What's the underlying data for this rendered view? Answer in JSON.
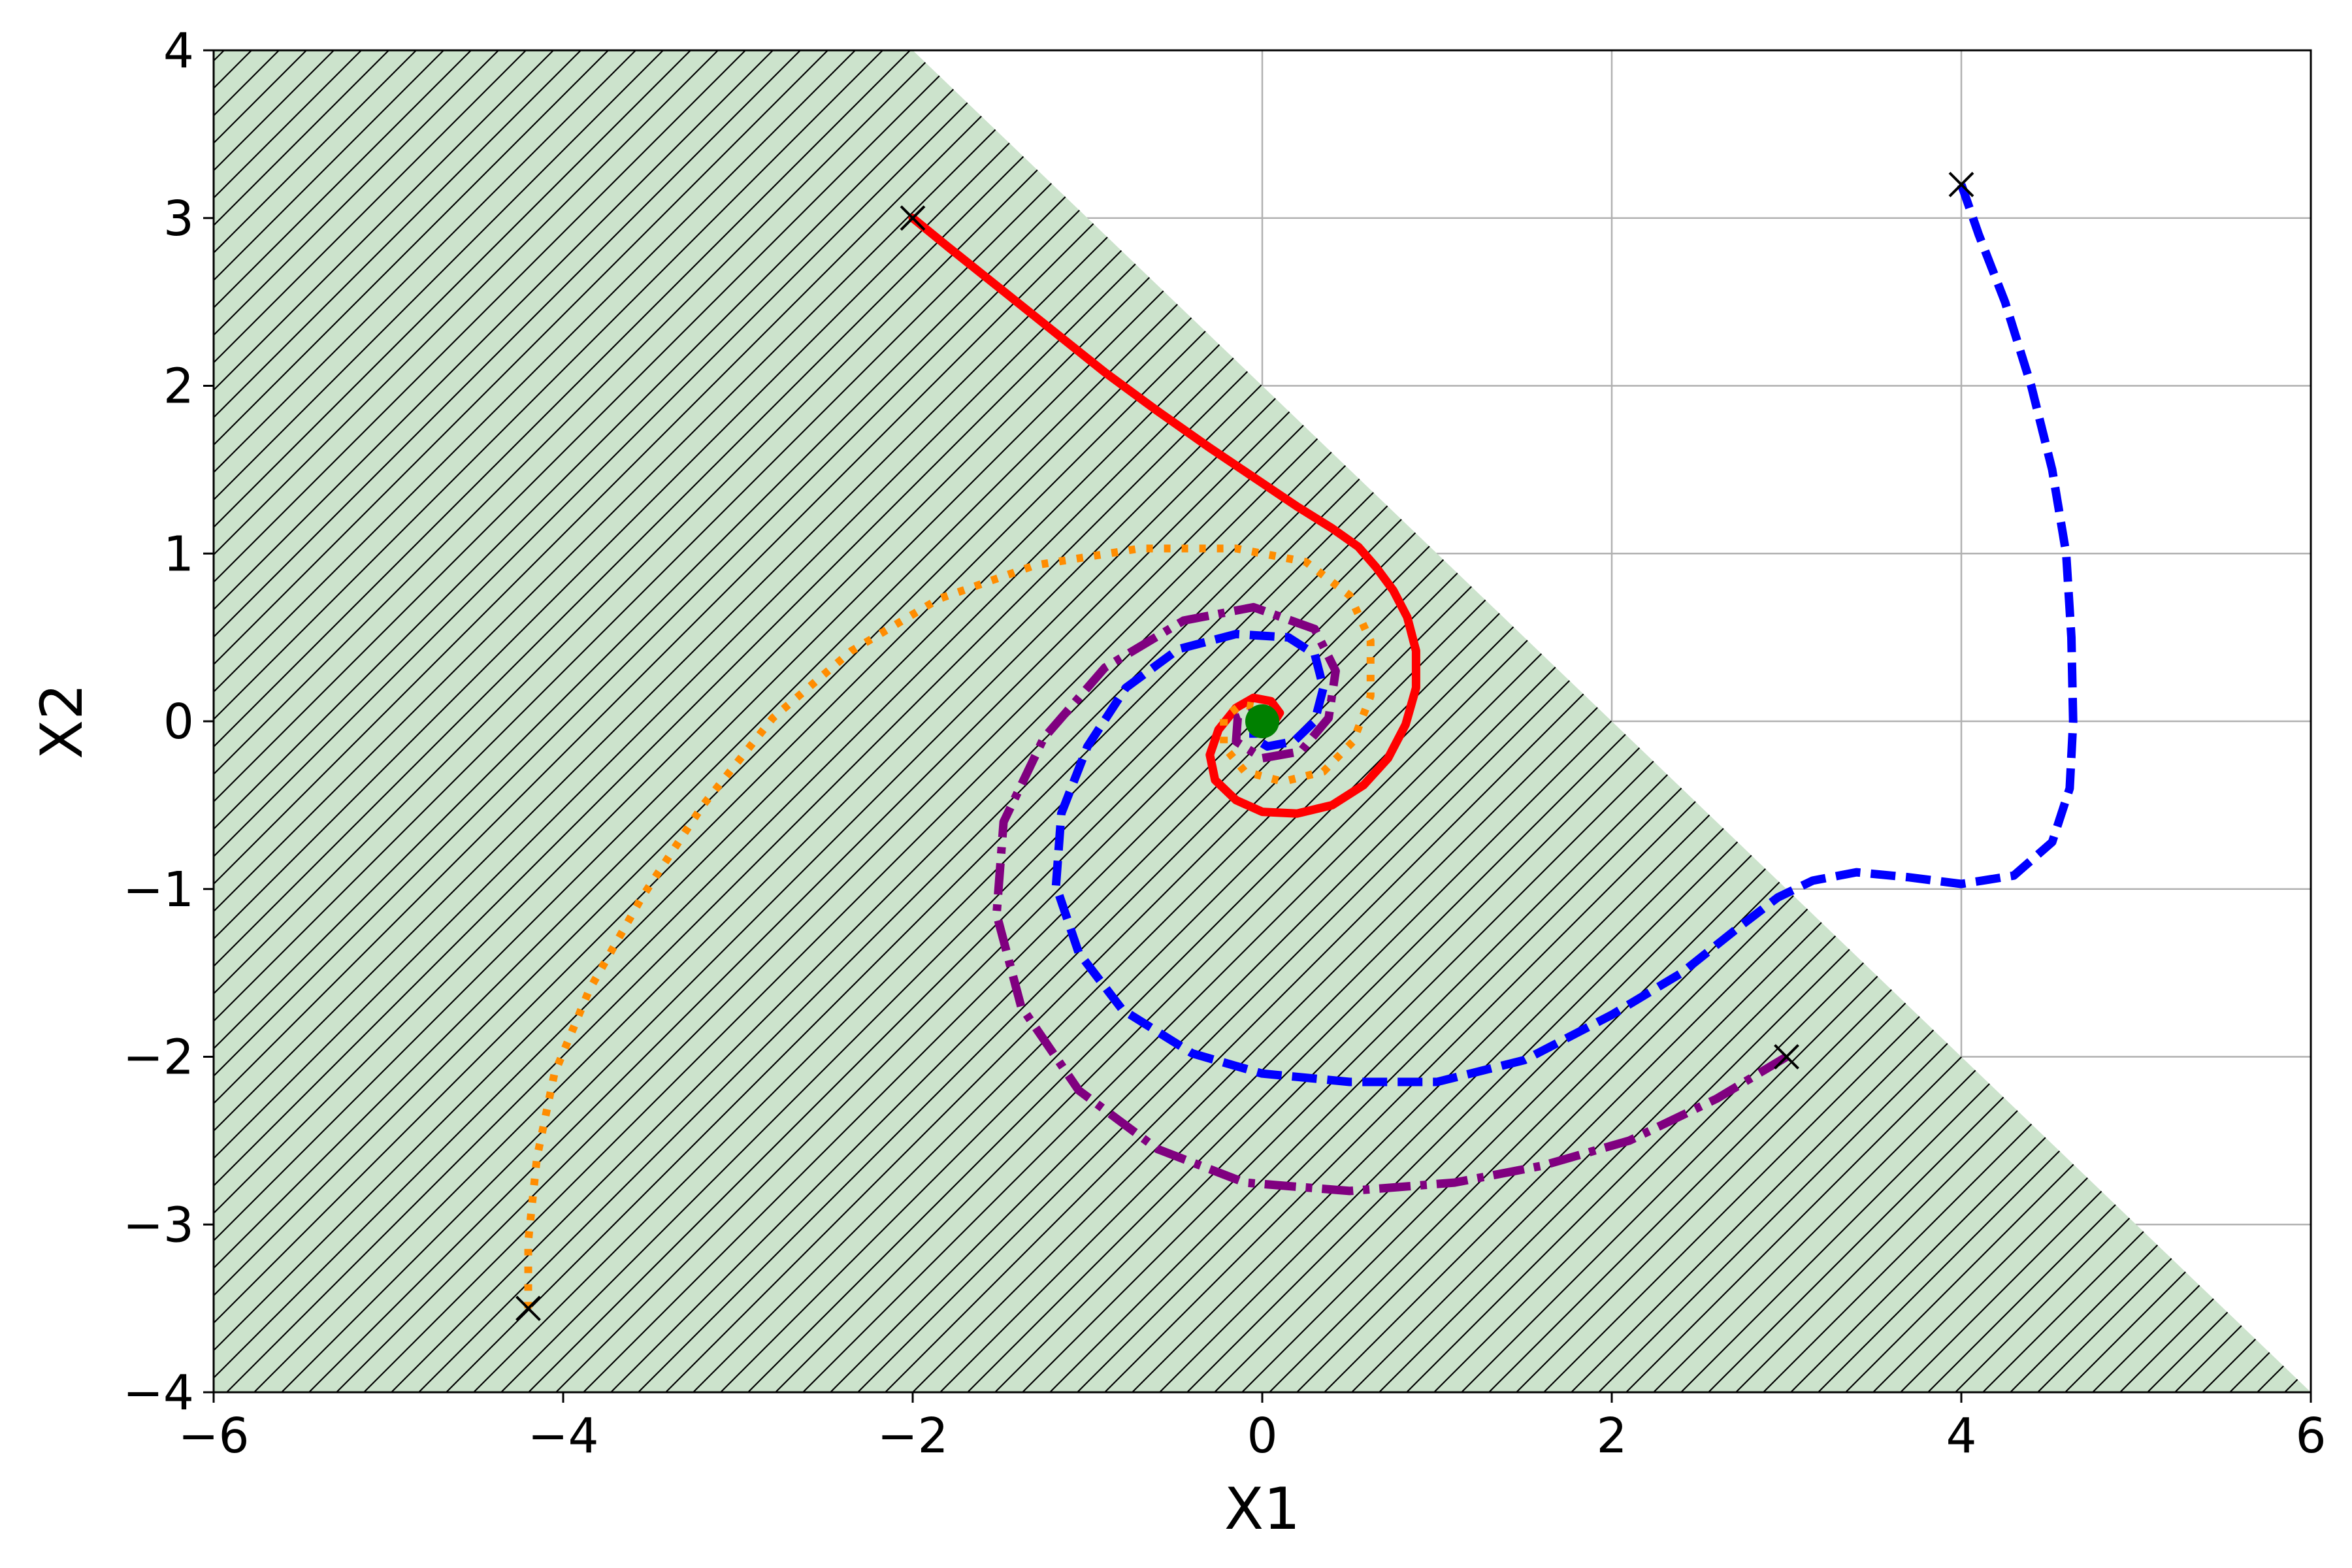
{
  "chart_data": {
    "type": "line",
    "title": "",
    "xlabel": "X1",
    "ylabel": "X2",
    "xlim": [
      -6,
      6
    ],
    "ylim": [
      -4,
      4
    ],
    "xticks": [
      -6,
      -4,
      -2,
      0,
      2,
      4,
      6
    ],
    "yticks": [
      -4,
      -3,
      -2,
      -1,
      0,
      1,
      2,
      3,
      4
    ],
    "xtick_labels": [
      "−6",
      "−4",
      "−2",
      "0",
      "2",
      "4",
      "6"
    ],
    "ytick_labels": [
      "−4",
      "−3",
      "−2",
      "−1",
      "0",
      "1",
      "2",
      "3",
      "4"
    ],
    "grid": true,
    "region": {
      "boundary": "x1 + x2 <= 2",
      "vertices": [
        [
          -6,
          -4
        ],
        [
          -6,
          4
        ],
        [
          -2,
          4
        ],
        [
          6,
          -4
        ]
      ],
      "fill_color": "#cce3cc",
      "hatch": "diagonal"
    },
    "equilibrium": {
      "x": 0,
      "y": 0,
      "color": "#008000"
    },
    "series": [
      {
        "color": "#ff0000",
        "style": "solid",
        "start": [
          -2,
          3
        ],
        "points": [
          [
            -2,
            3
          ],
          [
            -1.8,
            2.83
          ],
          [
            -1.5,
            2.58
          ],
          [
            -1.2,
            2.33
          ],
          [
            -0.9,
            2.08
          ],
          [
            -0.6,
            1.85
          ],
          [
            -0.3,
            1.63
          ],
          [
            0,
            1.42
          ],
          [
            0.2,
            1.28
          ],
          [
            0.4,
            1.15
          ],
          [
            0.55,
            1.04
          ],
          [
            0.65,
            0.92
          ],
          [
            0.75,
            0.78
          ],
          [
            0.83,
            0.62
          ],
          [
            0.88,
            0.42
          ],
          [
            0.88,
            0.2
          ],
          [
            0.82,
            -0.02
          ],
          [
            0.72,
            -0.22
          ],
          [
            0.58,
            -0.38
          ],
          [
            0.4,
            -0.5
          ],
          [
            0.2,
            -0.55
          ],
          [
            0,
            -0.54
          ],
          [
            -0.15,
            -0.47
          ],
          [
            -0.27,
            -0.35
          ],
          [
            -0.3,
            -0.2
          ],
          [
            -0.25,
            -0.05
          ],
          [
            -0.15,
            0.08
          ],
          [
            -0.05,
            0.14
          ],
          [
            0.05,
            0.12
          ],
          [
            0.1,
            0.05
          ],
          [
            0.07,
            0
          ],
          [
            0,
            -0.02
          ]
        ]
      },
      {
        "color": "#0000ff",
        "style": "dashed",
        "start": [
          4,
          3.2
        ],
        "points": [
          [
            4,
            3.2
          ],
          [
            4.1,
            2.9
          ],
          [
            4.25,
            2.5
          ],
          [
            4.4,
            2
          ],
          [
            4.52,
            1.5
          ],
          [
            4.6,
            1
          ],
          [
            4.63,
            0.5
          ],
          [
            4.64,
            0
          ],
          [
            4.62,
            -0.4
          ],
          [
            4.52,
            -0.72
          ],
          [
            4.3,
            -0.92
          ],
          [
            4,
            -0.97
          ],
          [
            3.7,
            -0.93
          ],
          [
            3.4,
            -0.9
          ],
          [
            3.15,
            -0.95
          ],
          [
            2.95,
            -1.05
          ],
          [
            2.7,
            -1.25
          ],
          [
            2.4,
            -1.5
          ],
          [
            2,
            -1.75
          ],
          [
            1.5,
            -2.02
          ],
          [
            1,
            -2.15
          ],
          [
            0.5,
            -2.15
          ],
          [
            0,
            -2.1
          ],
          [
            -0.4,
            -1.98
          ],
          [
            -0.8,
            -1.72
          ],
          [
            -1.05,
            -1.38
          ],
          [
            -1.18,
            -0.98
          ],
          [
            -1.15,
            -0.55
          ],
          [
            -1,
            -0.15
          ],
          [
            -0.78,
            0.2
          ],
          [
            -0.48,
            0.43
          ],
          [
            -0.15,
            0.52
          ],
          [
            0.15,
            0.5
          ],
          [
            0.3,
            0.4
          ],
          [
            0.35,
            0.2
          ],
          [
            0.3,
            0
          ],
          [
            0.18,
            -0.12
          ],
          [
            0.03,
            -0.15
          ],
          [
            -0.05,
            -0.1
          ],
          [
            -0.05,
            -0.03
          ],
          [
            0,
            0
          ]
        ]
      },
      {
        "color": "#ff8c00",
        "style": "dotted",
        "start": [
          -4.2,
          -3.5
        ],
        "points": [
          [
            -4.2,
            -3.5
          ],
          [
            -4.2,
            -3.1
          ],
          [
            -4.15,
            -2.6
          ],
          [
            -4.05,
            -2.1
          ],
          [
            -3.85,
            -1.6
          ],
          [
            -3.55,
            -1.05
          ],
          [
            -3.2,
            -0.5
          ],
          [
            -2.8,
            0.02
          ],
          [
            -2.35,
            0.42
          ],
          [
            -1.85,
            0.73
          ],
          [
            -1.3,
            0.93
          ],
          [
            -0.7,
            1.03
          ],
          [
            -0.15,
            1.03
          ],
          [
            0.25,
            0.95
          ],
          [
            0.5,
            0.75
          ],
          [
            0.62,
            0.48
          ],
          [
            0.62,
            0.15
          ],
          [
            0.52,
            -0.12
          ],
          [
            0.35,
            -0.3
          ],
          [
            0.12,
            -0.36
          ],
          [
            -0.1,
            -0.3
          ],
          [
            -0.22,
            -0.15
          ],
          [
            -0.22,
            0.02
          ],
          [
            -0.12,
            0.1
          ],
          [
            0,
            0.08
          ],
          [
            0.05,
            0.02
          ]
        ]
      },
      {
        "color": "#800080",
        "style": "dashdot",
        "start": [
          3,
          -2
        ],
        "points": [
          [
            3,
            -2
          ],
          [
            2.6,
            -2.25
          ],
          [
            2.1,
            -2.5
          ],
          [
            1.6,
            -2.65
          ],
          [
            1.1,
            -2.75
          ],
          [
            0.5,
            -2.8
          ],
          [
            -0.1,
            -2.75
          ],
          [
            -0.6,
            -2.55
          ],
          [
            -1.05,
            -2.2
          ],
          [
            -1.38,
            -1.7
          ],
          [
            -1.52,
            -1.15
          ],
          [
            -1.48,
            -0.6
          ],
          [
            -1.25,
            -0.1
          ],
          [
            -0.9,
            0.32
          ],
          [
            -0.45,
            0.6
          ],
          [
            -0.05,
            0.68
          ],
          [
            0.3,
            0.55
          ],
          [
            0.42,
            0.3
          ],
          [
            0.38,
            0.02
          ],
          [
            0.22,
            -0.18
          ],
          [
            0,
            -0.22
          ],
          [
            -0.15,
            -0.12
          ],
          [
            -0.14,
            0.02
          ],
          [
            -0.04,
            0.06
          ],
          [
            0,
            0
          ]
        ]
      }
    ]
  }
}
